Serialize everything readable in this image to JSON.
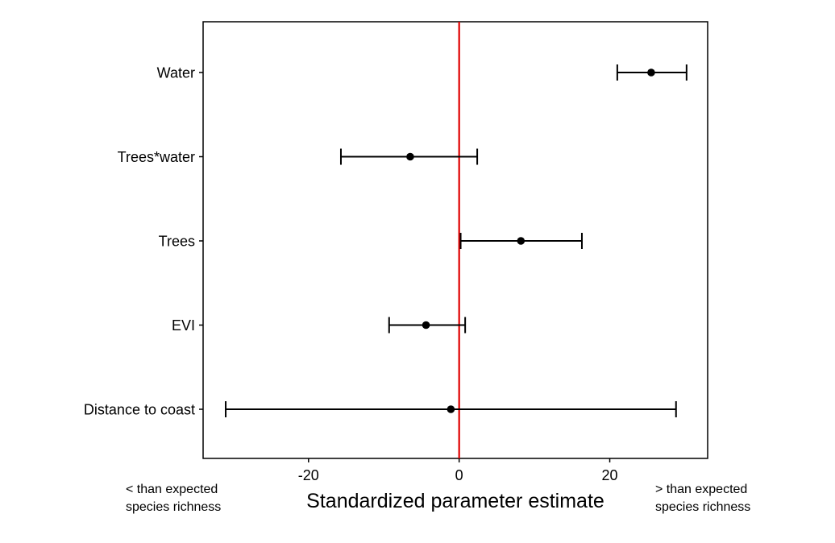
{
  "chart_data": {
    "type": "scatter",
    "subtype": "forest-plot",
    "title": "",
    "xlabel": "Standardized parameter estimate",
    "ylabel": "",
    "xlim": [
      -34,
      33
    ],
    "x_ticks": [
      -20,
      0,
      20
    ],
    "x_tick_labels": [
      "-20",
      "0",
      "20"
    ],
    "reference_line": {
      "x": 0,
      "color": "#e00000"
    },
    "grid": false,
    "categories": [
      "Water",
      "Trees*water",
      "Trees",
      "EVI",
      "Distance to coast"
    ],
    "series": [
      {
        "estimate": [
          25.5,
          -6.5,
          8.2,
          -4.4,
          -1.1
        ],
        "lower": [
          21.0,
          -15.7,
          0.2,
          -9.3,
          -31.0
        ],
        "upper": [
          30.2,
          2.4,
          16.3,
          0.8,
          28.8
        ]
      }
    ],
    "point_color": "#000000"
  },
  "annotations": {
    "left_line1": "< than expected",
    "left_line2": "species richness",
    "right_line1": "> than expected",
    "right_line2": "species richness"
  }
}
